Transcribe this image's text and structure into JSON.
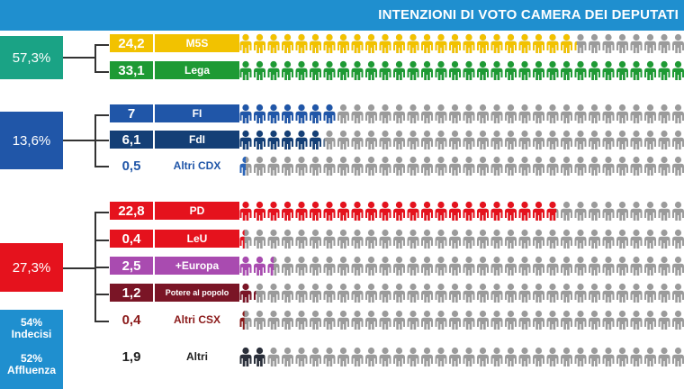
{
  "header": {
    "title": "INTENZIONI DI VOTO CAMERA DEI DEPUTATI"
  },
  "blocs": {
    "m5s_lega": {
      "label": "57,3%",
      "color": "#1aa385"
    },
    "cdx": {
      "label": "13,6%",
      "color": "#2056a8"
    },
    "csx": {
      "label": "27,3%",
      "color": "#e5121d"
    }
  },
  "info": {
    "undecided": "54%",
    "undecided_label": "Indecisi",
    "turnout": "52%",
    "turnout_label": "Affluenza"
  },
  "chart_data": {
    "type": "bar",
    "categories": [
      "M5S",
      "Lega",
      "FI",
      "FdI",
      "Altri CDX",
      "PD",
      "LeU",
      "+Europa",
      "Potere al popolo",
      "Altri CSX",
      "Altri"
    ],
    "values": [
      24.2,
      33.1,
      7,
      6.1,
      0.5,
      22.8,
      0.4,
      2.5,
      1.2,
      0.4,
      1.9
    ],
    "value_labels": [
      "24,2",
      "33,1",
      "7",
      "6,1",
      "0,5",
      "22,8",
      "0,4",
      "2,5",
      "1,2",
      "0,4",
      "1,9"
    ],
    "colors": [
      "#f2c200",
      "#1e9a34",
      "#2056a8",
      "#143f76",
      "#2a64b8",
      "#e5121d",
      "#e5121d",
      "#a94bb0",
      "#7a1526",
      "#8b1a1a",
      "#2a2f3a"
    ],
    "inactive_color": "#9b9b9b"
  }
}
